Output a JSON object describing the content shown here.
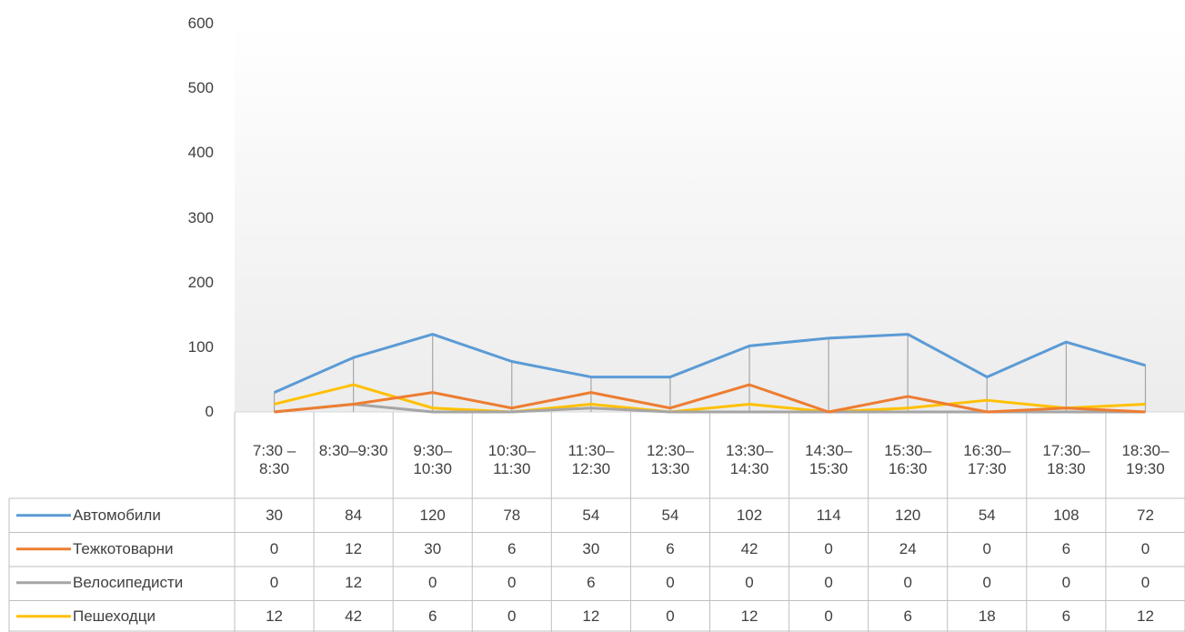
{
  "chart_data": {
    "type": "line",
    "categories": [
      "7:30 – 8:30",
      "8:30–9:30",
      "9:30–10:30",
      "10:30–11:30",
      "11:30–12:30",
      "12:30–13:30",
      "13:30–14:30",
      "14:30–15:30",
      "15:30–16:30",
      "16:30–17:30",
      "17:30–18:30",
      "18:30–19:30"
    ],
    "series": [
      {
        "name": "Автомобили",
        "color": "#5b9bd5",
        "values": [
          30,
          84,
          120,
          78,
          54,
          54,
          102,
          114,
          120,
          54,
          108,
          72
        ]
      },
      {
        "name": "Тежкотоварни",
        "color": "#ed7d31",
        "values": [
          0,
          12,
          30,
          6,
          30,
          6,
          42,
          0,
          24,
          0,
          6,
          0
        ]
      },
      {
        "name": "Велосипедисти",
        "color": "#a5a5a5",
        "values": [
          0,
          12,
          0,
          0,
          6,
          0,
          0,
          0,
          0,
          0,
          0,
          0
        ]
      },
      {
        "name": "Пешеходци",
        "color": "#ffc000",
        "values": [
          12,
          42,
          6,
          0,
          12,
          0,
          12,
          0,
          6,
          18,
          6,
          12
        ]
      }
    ],
    "ylim": [
      0,
      600
    ],
    "yticks": [
      0,
      100,
      200,
      300,
      400,
      500,
      600
    ],
    "data_table": true
  }
}
